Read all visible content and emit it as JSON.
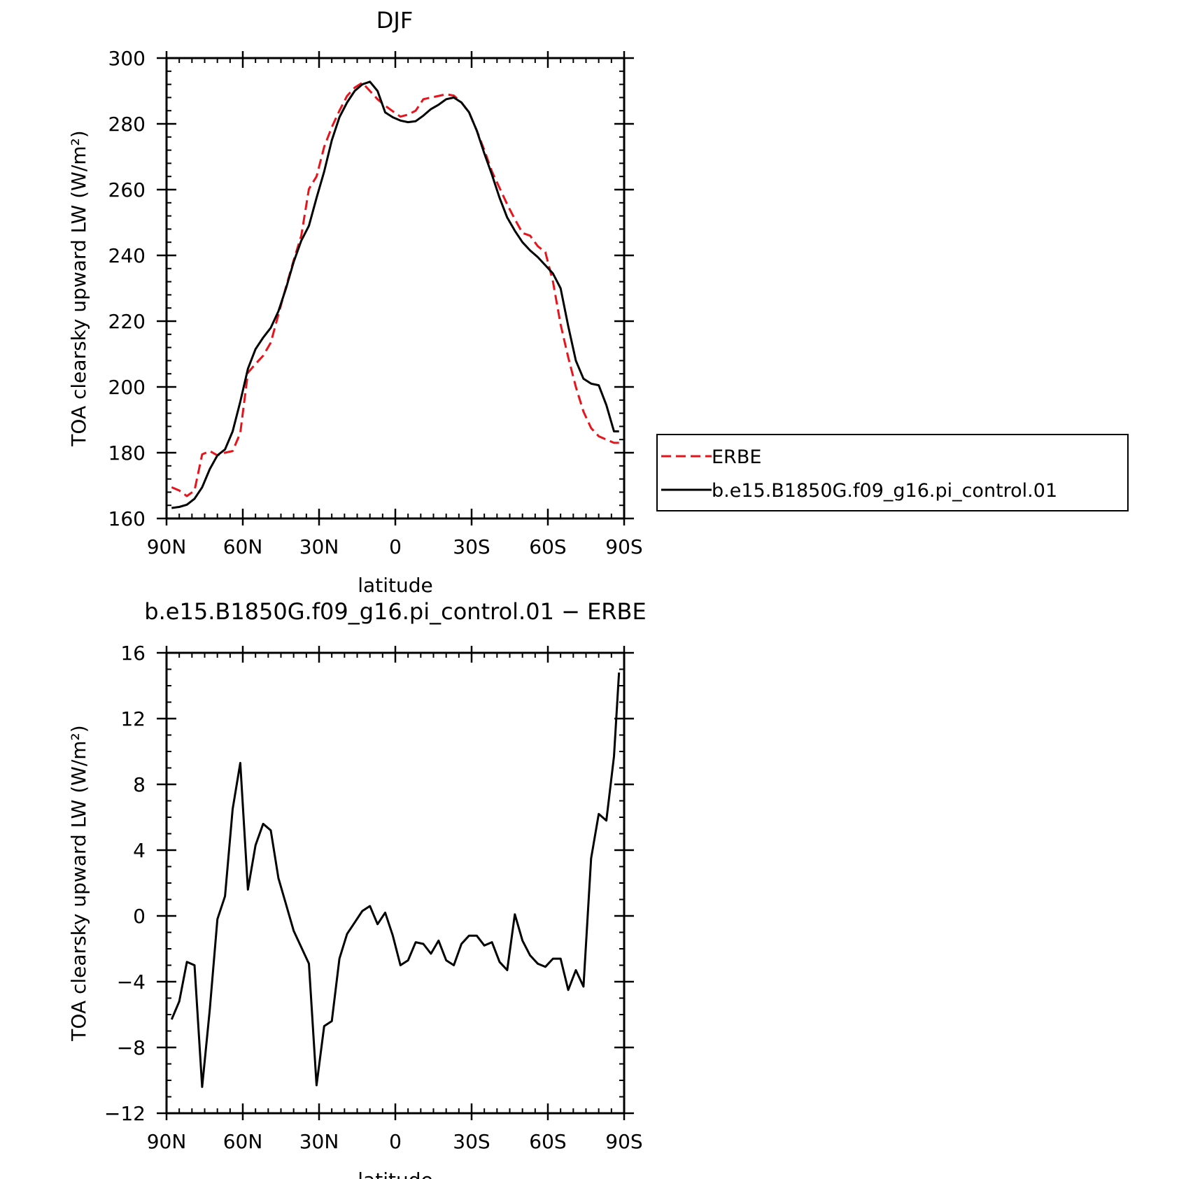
{
  "figure": {
    "background": "#ffffff"
  },
  "chart_data": [
    {
      "type": "line",
      "title": "DJF",
      "xlabel": "latitude",
      "ylabel": "TOA clearsky upward LW (W/m²)",
      "xlim": [
        90,
        -90
      ],
      "ylim": [
        160,
        300
      ],
      "x_ticks": [
        {
          "value": 90,
          "label": "90N"
        },
        {
          "value": 60,
          "label": "60N"
        },
        {
          "value": 30,
          "label": "30N"
        },
        {
          "value": 0,
          "label": "0"
        },
        {
          "value": -30,
          "label": "30S"
        },
        {
          "value": -60,
          "label": "60S"
        },
        {
          "value": -90,
          "label": "90S"
        }
      ],
      "y_ticks": [
        {
          "value": 160,
          "label": "160"
        },
        {
          "value": 180,
          "label": "180"
        },
        {
          "value": 200,
          "label": "200"
        },
        {
          "value": 220,
          "label": "220"
        },
        {
          "value": 240,
          "label": "240"
        },
        {
          "value": 260,
          "label": "260"
        },
        {
          "value": 280,
          "label": "280"
        },
        {
          "value": 300,
          "label": "300"
        }
      ],
      "x_minor_step": 5,
      "y_minor_step": 4,
      "grid": false,
      "legend_position": "right",
      "series": [
        {
          "name": "ERBE",
          "color": "#e8141c",
          "dash": "dashed",
          "x": [
            88,
            85,
            82,
            79,
            76,
            73,
            70,
            67,
            64,
            61,
            58,
            55,
            52,
            49,
            46,
            43,
            40,
            37,
            34,
            31,
            28,
            25,
            22,
            19,
            16,
            13,
            10,
            7,
            4,
            1,
            -2,
            -5,
            -8,
            -11,
            -14,
            -17,
            -20,
            -23,
            -26,
            -29,
            -32,
            -35,
            -38,
            -41,
            -44,
            -47,
            -50,
            -53,
            -56,
            -59,
            -62,
            -65,
            -68,
            -71,
            -74,
            -77,
            -80,
            -83,
            -86,
            -88
          ],
          "y": [
            169.5,
            168.5,
            166.8,
            168.5,
            179.5,
            180.5,
            179.2,
            180,
            180.5,
            186,
            204.3,
            207,
            209.5,
            213.5,
            222,
            230.5,
            238.5,
            246,
            260.2,
            264,
            273,
            279,
            284,
            288.5,
            291,
            292.5,
            290,
            287.5,
            285.5,
            283.8,
            282.2,
            282.8,
            284,
            287.5,
            288,
            288.5,
            289,
            288.6,
            286.5,
            283.5,
            278,
            272,
            265.5,
            260.5,
            255.5,
            251,
            246.8,
            246,
            242.8,
            241,
            232,
            219,
            209,
            200,
            192.5,
            187.5,
            185,
            184,
            183,
            183
          ]
        },
        {
          "name": "b.e15.B1850G.f09_g16.pi_control.01",
          "color": "#000000",
          "dash": "solid",
          "x": [
            88,
            85,
            82,
            79,
            76,
            73,
            70,
            67,
            64,
            61,
            58,
            55,
            52,
            49,
            46,
            43,
            40,
            37,
            34,
            31,
            28,
            25,
            22,
            19,
            16,
            13,
            10,
            7,
            4,
            1,
            -2,
            -5,
            -8,
            -11,
            -14,
            -17,
            -20,
            -23,
            -26,
            -29,
            -32,
            -35,
            -38,
            -41,
            -44,
            -47,
            -50,
            -53,
            -56,
            -59,
            -62,
            -65,
            -68,
            -71,
            -74,
            -77,
            -80,
            -83,
            -86,
            -88
          ],
          "y": [
            163.2,
            163.5,
            164.2,
            166,
            169.5,
            175,
            179.2,
            181,
            186.5,
            195.5,
            205.5,
            211.5,
            215,
            218,
            223,
            230,
            238,
            244.5,
            249,
            257.5,
            265.5,
            275,
            282,
            286.5,
            290,
            292,
            292.8,
            290,
            283.5,
            282,
            281,
            280.5,
            280.8,
            282.5,
            284.5,
            285.8,
            287.5,
            288,
            286.5,
            283.5,
            278,
            271,
            264.5,
            257.5,
            251.5,
            247.5,
            244,
            241.5,
            239.5,
            237,
            234.5,
            230,
            218.5,
            208,
            202.5,
            201,
            200.5,
            194.5,
            186.5,
            186.5
          ]
        }
      ]
    },
    {
      "type": "line",
      "title": "b.e15.B1850G.f09_g16.pi_control.01 − ERBE",
      "xlabel": "latitude",
      "ylabel": "TOA clearsky upward LW (W/m²)",
      "xlim": [
        90,
        -90
      ],
      "ylim": [
        -12,
        16
      ],
      "x_ticks": [
        {
          "value": 90,
          "label": "90N"
        },
        {
          "value": 60,
          "label": "60N"
        },
        {
          "value": 30,
          "label": "30N"
        },
        {
          "value": 0,
          "label": "0"
        },
        {
          "value": -30,
          "label": "30S"
        },
        {
          "value": -60,
          "label": "60S"
        },
        {
          "value": -90,
          "label": "90S"
        }
      ],
      "y_ticks": [
        {
          "value": -12,
          "label": "−12"
        },
        {
          "value": -8,
          "label": "−8"
        },
        {
          "value": -4,
          "label": "−4"
        },
        {
          "value": 0,
          "label": "0"
        },
        {
          "value": 4,
          "label": "4"
        },
        {
          "value": 8,
          "label": "8"
        },
        {
          "value": 12,
          "label": "12"
        },
        {
          "value": 16,
          "label": "16"
        }
      ],
      "x_minor_step": 5,
      "y_minor_step": 1,
      "grid": false,
      "series": [
        {
          "color": "#000000",
          "dash": "solid",
          "x": [
            88,
            85,
            82,
            79,
            76,
            73,
            70,
            67,
            64,
            61,
            58,
            55,
            52,
            49,
            46,
            43,
            40,
            37,
            34,
            31,
            28,
            25,
            22,
            19,
            16,
            13,
            10,
            7,
            4,
            1,
            -2,
            -5,
            -8,
            -11,
            -14,
            -17,
            -20,
            -23,
            -26,
            -29,
            -32,
            -35,
            -38,
            -41,
            -44,
            -47,
            -50,
            -53,
            -56,
            -59,
            -62,
            -65,
            -68,
            -71,
            -74,
            -77,
            -80,
            -83,
            -86,
            -88
          ],
          "y": [
            -6.3,
            -5.2,
            -2.8,
            -3,
            -10.4,
            -5.7,
            -0.2,
            1.2,
            6.5,
            9.3,
            1.6,
            4.3,
            5.6,
            5.2,
            2.3,
            0.7,
            -0.9,
            -1.9,
            -2.9,
            -10.3,
            -6.7,
            -6.4,
            -2.6,
            -1.1,
            -0.4,
            0.3,
            0.6,
            -0.5,
            0.2,
            -1.2,
            -3,
            -2.7,
            -1.6,
            -1.7,
            -2.3,
            -1.5,
            -2.7,
            -3,
            -1.7,
            -1.2,
            -1.2,
            -1.8,
            -1.6,
            -2.8,
            -3.3,
            0.1,
            -1.5,
            -2.4,
            -2.9,
            -3.1,
            -2.6,
            -2.6,
            -4.5,
            -3.3,
            -4.3,
            3.5,
            6.2,
            5.8,
            9.7,
            14.8
          ]
        }
      ]
    }
  ]
}
